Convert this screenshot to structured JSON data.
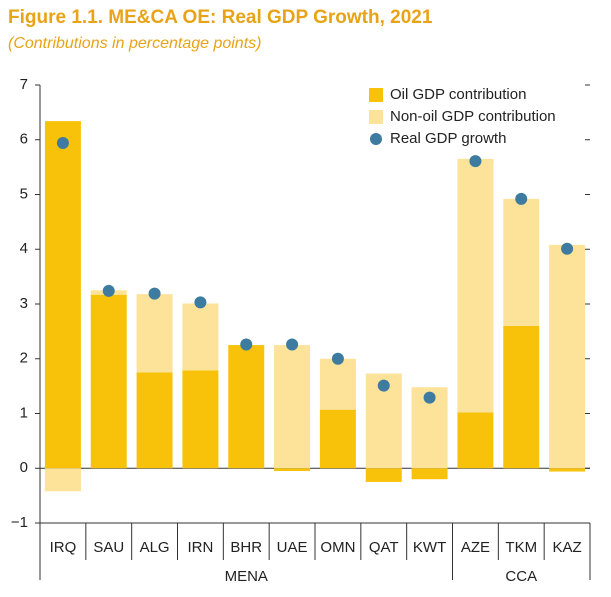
{
  "chart_data": {
    "type": "bar",
    "title": "Figure 1.1. ME&CA OE: Real GDP Growth, 2021",
    "subtitle": "(Contributions in percentage points)",
    "categories": [
      "IRQ",
      "SAU",
      "ALG",
      "IRN",
      "BHR",
      "UAE",
      "OMN",
      "QAT",
      "KWT",
      "AZE",
      "TKM",
      "KAZ"
    ],
    "groups": [
      {
        "label": "MENA",
        "span": 9
      },
      {
        "label": "CCA",
        "span": 3
      }
    ],
    "series": [
      {
        "name": "Oil GDP contribution",
        "color": "#f9c20a",
        "values": [
          6.34,
          3.17,
          1.75,
          1.79,
          2.25,
          -0.05,
          1.07,
          -0.25,
          -0.2,
          1.02,
          2.6,
          -0.06
        ]
      },
      {
        "name": "Non-oil GDP contribution",
        "color": "#fde29a",
        "values": [
          -0.42,
          0.08,
          1.43,
          1.22,
          0,
          2.25,
          0.93,
          1.73,
          1.48,
          4.63,
          2.32,
          4.08
        ]
      },
      {
        "name": "Real GDP growth",
        "type": "scatter",
        "color": "#3d7ba0",
        "values": [
          5.94,
          3.24,
          3.19,
          3.03,
          2.26,
          2.26,
          2.0,
          1.51,
          1.29,
          5.61,
          4.92,
          4.01
        ]
      }
    ],
    "ylim": [
      -1,
      7
    ],
    "yticks": [
      {
        "value": -1,
        "label": "−1"
      },
      0,
      1,
      2,
      3,
      4,
      5,
      6,
      7
    ],
    "legend": "top-right",
    "grid": false
  }
}
